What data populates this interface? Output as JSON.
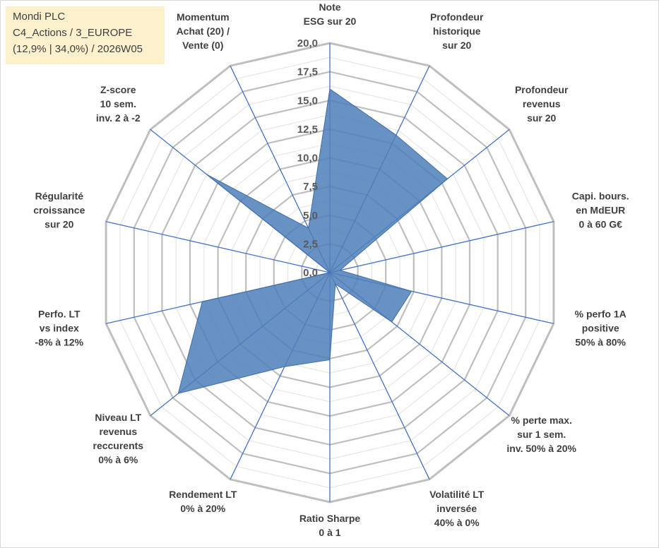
{
  "info": {
    "line1": "Mondi PLC",
    "line2": "C4_Actions / 3_EUROPE",
    "line3": "(12,9% | 34,0%) / 2026W05"
  },
  "chart_data": {
    "type": "radar",
    "title": "",
    "rmax": 20,
    "ticks": [
      "0,0",
      "2,5",
      "5,0",
      "7,5",
      "10,0",
      "12,5",
      "15,0",
      "17,5",
      "20,0"
    ],
    "axes": [
      [
        "Note",
        "ESG sur 20"
      ],
      [
        "Profondeur",
        "historique",
        "sur 20"
      ],
      [
        "Profondeur",
        "revenus",
        "sur 20"
      ],
      [
        "Capi. bours.",
        "en MdEUR",
        "0 à 60 G€"
      ],
      [
        "% perfo 1A",
        "positive",
        "50% à 80%"
      ],
      [
        "% perte max.",
        "sur 1 sem.",
        "inv. 50% à 20%"
      ],
      [
        "Volatilité LT",
        "inversée",
        "40% à 0%"
      ],
      [
        "Ratio Sharpe",
        "0 à 1"
      ],
      [
        "Rendement LT",
        "0% à 20%"
      ],
      [
        "Niveau LT",
        "revenus",
        "reccurents",
        "0% à 6%"
      ],
      [
        "Perfo. LT",
        "vs index",
        "-8% à 12%"
      ],
      [
        "Régularité",
        "croissance",
        "sur 20"
      ],
      [
        "Z-score",
        "10 sem.",
        "inv. 2 à -2"
      ],
      [
        "Momentum",
        "Achat (20) /",
        "Vente (0)"
      ]
    ],
    "values": [
      16.0,
      13.3,
      13.1,
      0.9,
      7.3,
      6.9,
      1.1,
      7.6,
      9.1,
      16.9,
      11.4,
      0.0,
      13.7,
      4.3
    ],
    "colors": {
      "fill": "#4f7fba",
      "outline": "#3f6ea8",
      "spoke": "#4472c4",
      "grid_major": "#bfbfbf",
      "grid_minor": "#e6e6e6"
    }
  }
}
